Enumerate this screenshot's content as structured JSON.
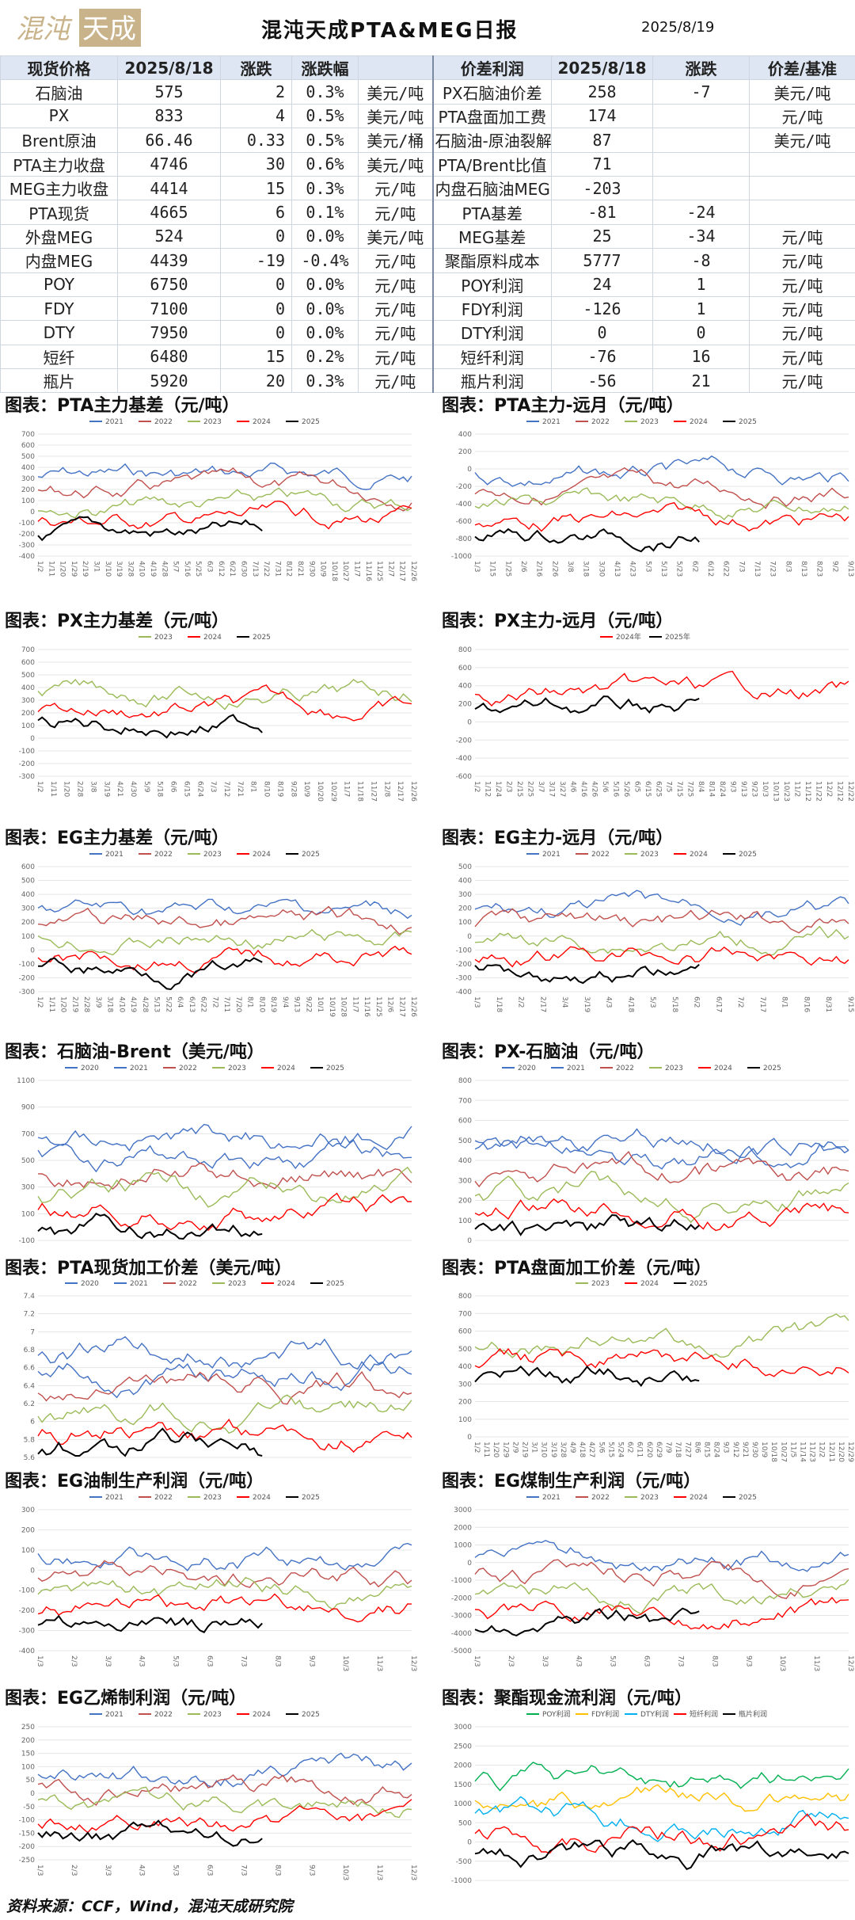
{
  "header": {
    "logo_text": "混沌天成",
    "title": "混沌天成PTA&MEG日报",
    "date": "2025/8/19"
  },
  "table": {
    "head": [
      "现货价格",
      "2025/8/18",
      "涨跌",
      "涨跌幅",
      "",
      "价差利润",
      "2025/8/18",
      "涨跌",
      "价差/基准"
    ],
    "rows": [
      [
        "石脑油",
        "575",
        "2",
        "0.3%",
        "美元/吨",
        "PX石脑油价差",
        "258",
        "-7",
        "美元/吨"
      ],
      [
        "PX",
        "833",
        "4",
        "0.5%",
        "美元/吨",
        "PTA盘面加工费",
        "174",
        "",
        "元/吨"
      ],
      [
        "Brent原油",
        "66.46",
        "0.33",
        "0.5%",
        "美元/桶",
        "石脑油-原油裂解",
        "87",
        "",
        "美元/吨"
      ],
      [
        "PTA主力收盘",
        "4746",
        "30",
        "0.6%",
        "美元/吨",
        "PTA/Brent比值",
        "71",
        "",
        ""
      ],
      [
        "MEG主力收盘",
        "4414",
        "15",
        "0.3%",
        "元/吨",
        "内盘石脑油MEG",
        "-203",
        "",
        ""
      ],
      [
        "PTA现货",
        "4665",
        "6",
        "0.1%",
        "元/吨",
        "PTA基差",
        "-81",
        "-24",
        ""
      ],
      [
        "外盘MEG",
        "524",
        "0",
        "0.0%",
        "美元/吨",
        "MEG基差",
        "25",
        "-34",
        "元/吨"
      ],
      [
        "内盘MEG",
        "4439",
        "-19",
        "-0.4%",
        "元/吨",
        "聚酯原料成本",
        "5777",
        "-8",
        "元/吨"
      ],
      [
        "POY",
        "6750",
        "0",
        "0.0%",
        "元/吨",
        "POY利润",
        "24",
        "1",
        "元/吨"
      ],
      [
        "FDY",
        "7100",
        "0",
        "0.0%",
        "元/吨",
        "FDY利润",
        "-126",
        "1",
        "元/吨"
      ],
      [
        "DTY",
        "7950",
        "0",
        "0.0%",
        "元/吨",
        "DTY利润",
        "0",
        "0",
        "元/吨"
      ],
      [
        "短纤",
        "6480",
        "15",
        "0.2%",
        "元/吨",
        "短纤利润",
        "-76",
        "16",
        "元/吨"
      ],
      [
        "瓶片",
        "5920",
        "20",
        "0.3%",
        "元/吨",
        "瓶片利润",
        "-56",
        "21",
        "元/吨"
      ]
    ]
  },
  "colors": {
    "2020": "#4472c4",
    "2021": "#4472c4",
    "2022": "#c0504d",
    "2023": "#9bbb59",
    "2024": "#ff0000",
    "2025": "#000000"
  },
  "charts": [
    {
      "title": "图表：PTA主力基差（元/吨）",
      "legend": [
        "2021",
        "2022",
        "2023",
        "2024",
        "2025"
      ],
      "yticks": [
        "700",
        "600",
        "500",
        "400",
        "300",
        "200",
        "100",
        "0",
        "-100",
        "-200",
        "-300",
        "-400"
      ],
      "xticks": [
        "1/2",
        "1/11",
        "1/20",
        "1/29",
        "2/19",
        "3/1",
        "3/10",
        "3/19",
        "3/28",
        "4/10",
        "4/19",
        "4/28",
        "5/7",
        "5/16",
        "5/25",
        "6/3",
        "6/12",
        "6/21",
        "6/30",
        "7/13",
        "7/22",
        "7/31",
        "8/12",
        "8/21",
        "9/30",
        "10/9",
        "10/18",
        "10/27",
        "11/7",
        "11/16",
        "11/25",
        "12/7",
        "12/17",
        "12/26"
      ]
    },
    {
      "title": "图表：PTA主力-远月（元/吨）",
      "legend": [
        "2021",
        "2022",
        "2023",
        "2024",
        "2025"
      ],
      "yticks": [
        "400",
        "200",
        "0",
        "-200",
        "-400",
        "-600",
        "-800",
        "-1000"
      ],
      "xticks": [
        "1/3",
        "1/15",
        "1/25",
        "2/6",
        "2/16",
        "2/26",
        "3/8",
        "3/18",
        "3/30",
        "4/13",
        "4/23",
        "5/3",
        "5/13",
        "5/23",
        "6/2",
        "6/12",
        "6/22",
        "7/3",
        "7/13",
        "7/23",
        "8/3",
        "8/13",
        "8/23",
        "9/2",
        "9/13"
      ]
    },
    {
      "title": "图表：PX主力基差（元/吨）",
      "legend": [
        "2023",
        "2024",
        "2025"
      ],
      "yticks": [
        "700",
        "600",
        "500",
        "400",
        "300",
        "200",
        "100",
        "0",
        "-100",
        "-200",
        "-300"
      ],
      "xticks": [
        "1/2",
        "1/11",
        "1/20",
        "2/28",
        "3/8",
        "3/19",
        "4/21",
        "4/30",
        "5/9",
        "5/18",
        "6/6",
        "6/15",
        "6/24",
        "7/3",
        "7/12",
        "7/21",
        "8/1",
        "8/10",
        "8/19",
        "9/28",
        "10/9",
        "10/20",
        "10/29",
        "11/7",
        "11/18",
        "11/27",
        "12/8",
        "12/17",
        "12/26"
      ]
    },
    {
      "title": "图表：PX主力-远月（元/吨）",
      "legend": [
        "2024年",
        "2025年"
      ],
      "yticks": [
        "800",
        "600",
        "400",
        "200",
        "0",
        "-200",
        "-400",
        "-600"
      ],
      "xticks": [
        "1/2",
        "1/12",
        "1/24",
        "2/3",
        "2/15",
        "2/25",
        "3/7",
        "3/17",
        "3/27",
        "4/6",
        "4/16",
        "4/26",
        "5/6",
        "5/16",
        "5/26",
        "6/5",
        "6/15",
        "6/25",
        "7/5",
        "7/15",
        "7/25",
        "8/4",
        "8/14",
        "8/24",
        "9/3",
        "9/13",
        "9/23",
        "10/3",
        "10/13",
        "10/23",
        "11/2",
        "11/12",
        "11/22",
        "12/2",
        "12/12",
        "12/22"
      ]
    },
    {
      "title": "图表：EG主力基差（元/吨）",
      "legend": [
        "2021",
        "2022",
        "2023",
        "2024",
        "2025"
      ],
      "yticks": [
        "600",
        "500",
        "400",
        "300",
        "200",
        "100",
        "0",
        "-100",
        "-200",
        "-300"
      ],
      "xticks": [
        "1/2",
        "1/11",
        "1/20",
        "2/19",
        "2/28",
        "3/9",
        "3/18",
        "4/10",
        "4/19",
        "4/28",
        "5/13",
        "5/22",
        "6/4",
        "6/13",
        "6/22",
        "7/2",
        "7/11",
        "7/20",
        "8/1",
        "8/10",
        "8/19",
        "9/4",
        "9/13",
        "9/22",
        "10/1",
        "10/19",
        "10/28",
        "11/7",
        "11/16",
        "11/25",
        "12/6",
        "12/17",
        "12/26"
      ]
    },
    {
      "title": "图表：EG主力-远月（元/吨）",
      "legend": [
        "2021",
        "2022",
        "2023",
        "2024",
        "2025"
      ],
      "yticks": [
        "500",
        "400",
        "300",
        "200",
        "100",
        "0",
        "-100",
        "-200",
        "-300",
        "-400"
      ],
      "xticks": [
        "1/3",
        "1/18",
        "2/2",
        "2/17",
        "3/4",
        "3/19",
        "4/3",
        "4/18",
        "5/3",
        "5/18",
        "6/2",
        "6/17",
        "7/2",
        "7/17",
        "8/1",
        "8/16",
        "8/31",
        "9/15"
      ]
    },
    {
      "title": "图表：石脑油-Brent（美元/吨）",
      "legend": [
        "2020",
        "2021",
        "2022",
        "2023",
        "2024",
        "2025"
      ],
      "yticks": [
        "1100",
        "900",
        "700",
        "500",
        "300",
        "100",
        "-100"
      ],
      "xticks": []
    },
    {
      "title": "图表：PX-石脑油（元/吨）",
      "legend": [
        "2020",
        "2021",
        "2022",
        "2023",
        "2024",
        "2025"
      ],
      "yticks": [
        "800",
        "700",
        "600",
        "500",
        "400",
        "300",
        "200",
        "100",
        "0"
      ],
      "xticks": []
    },
    {
      "title": "图表：PTA现货加工价差（美元/吨）",
      "legend": [
        "2020",
        "2021",
        "2022",
        "2023",
        "2024",
        "2025"
      ],
      "yticks": [
        "7.4",
        "7.2",
        "7",
        "6.8",
        "6.6",
        "6.4",
        "6.2",
        "6",
        "5.8",
        "5.6"
      ],
      "xticks": []
    },
    {
      "title": "图表：PTA盘面加工价差（元/吨）",
      "legend": [
        "2023",
        "2024",
        "2025"
      ],
      "yticks": [
        "800",
        "700",
        "600",
        "500",
        "400",
        "300",
        "200",
        "100",
        "0"
      ],
      "xticks": [
        "1/2",
        "1/11",
        "1/20",
        "1/29",
        "2/9",
        "2/19",
        "3/1",
        "3/10",
        "3/19",
        "3/28",
        "4/9",
        "4/18",
        "4/27",
        "5/6",
        "5/15",
        "5/24",
        "6/2",
        "6/11",
        "6/20",
        "6/29",
        "7/9",
        "7/18",
        "7/27",
        "8/6",
        "8/15",
        "8/24",
        "9/3",
        "9/12",
        "9/21",
        "9/30",
        "10/9",
        "10/18",
        "10/27",
        "11/5",
        "11/14",
        "11/23",
        "12/2",
        "12/11",
        "12/20",
        "12/29"
      ]
    },
    {
      "title": "图表：EG油制生产利润（元/吨）",
      "legend": [
        "2021",
        "2022",
        "2023",
        "2024",
        "2025"
      ],
      "yticks": [
        "300",
        "200",
        "100",
        "0",
        "-100",
        "-200",
        "-300",
        "-400"
      ],
      "xticks": [
        "1/3",
        "2/3",
        "3/3",
        "4/3",
        "5/3",
        "6/3",
        "7/3",
        "8/3",
        "9/3",
        "10/3",
        "11/3",
        "12/3"
      ]
    },
    {
      "title": "图表：EG煤制生产利润（元/吨）",
      "legend": [
        "2021",
        "2022",
        "2023",
        "2024",
        "2025"
      ],
      "yticks": [
        "3000",
        "2000",
        "1000",
        "0",
        "-1000",
        "-2000",
        "-3000",
        "-4000",
        "-5000"
      ],
      "xticks": [
        "1/3",
        "2/3",
        "3/3",
        "4/3",
        "5/3",
        "6/3",
        "7/3",
        "8/3",
        "9/3",
        "10/3",
        "11/3",
        "12/3"
      ]
    },
    {
      "title": "图表：EG乙烯制利润（元/吨）",
      "legend": [
        "2021",
        "2022",
        "2023",
        "2024",
        "2025"
      ],
      "yticks": [
        "250",
        "200",
        "150",
        "100",
        "50",
        "0",
        "-50",
        "-100",
        "-150",
        "-200",
        "-250"
      ],
      "xticks": [
        "1/3",
        "2/3",
        "3/3",
        "4/3",
        "5/3",
        "6/3",
        "7/3",
        "8/3",
        "9/3",
        "10/3",
        "11/3",
        "12/3"
      ]
    },
    {
      "title": "图表：聚酯现金流利润（元/吨）",
      "legend": [
        "POY利润",
        "FDY利润",
        "DTY利润",
        "短纤利润",
        "瓶片利润"
      ],
      "yticks": [
        "3000",
        "2500",
        "2000",
        "1500",
        "1000",
        "500",
        "0",
        "-500",
        "-1000"
      ],
      "xticks": []
    }
  ],
  "source": "资料来源：CCF，Wind，混沌天成研究院"
}
